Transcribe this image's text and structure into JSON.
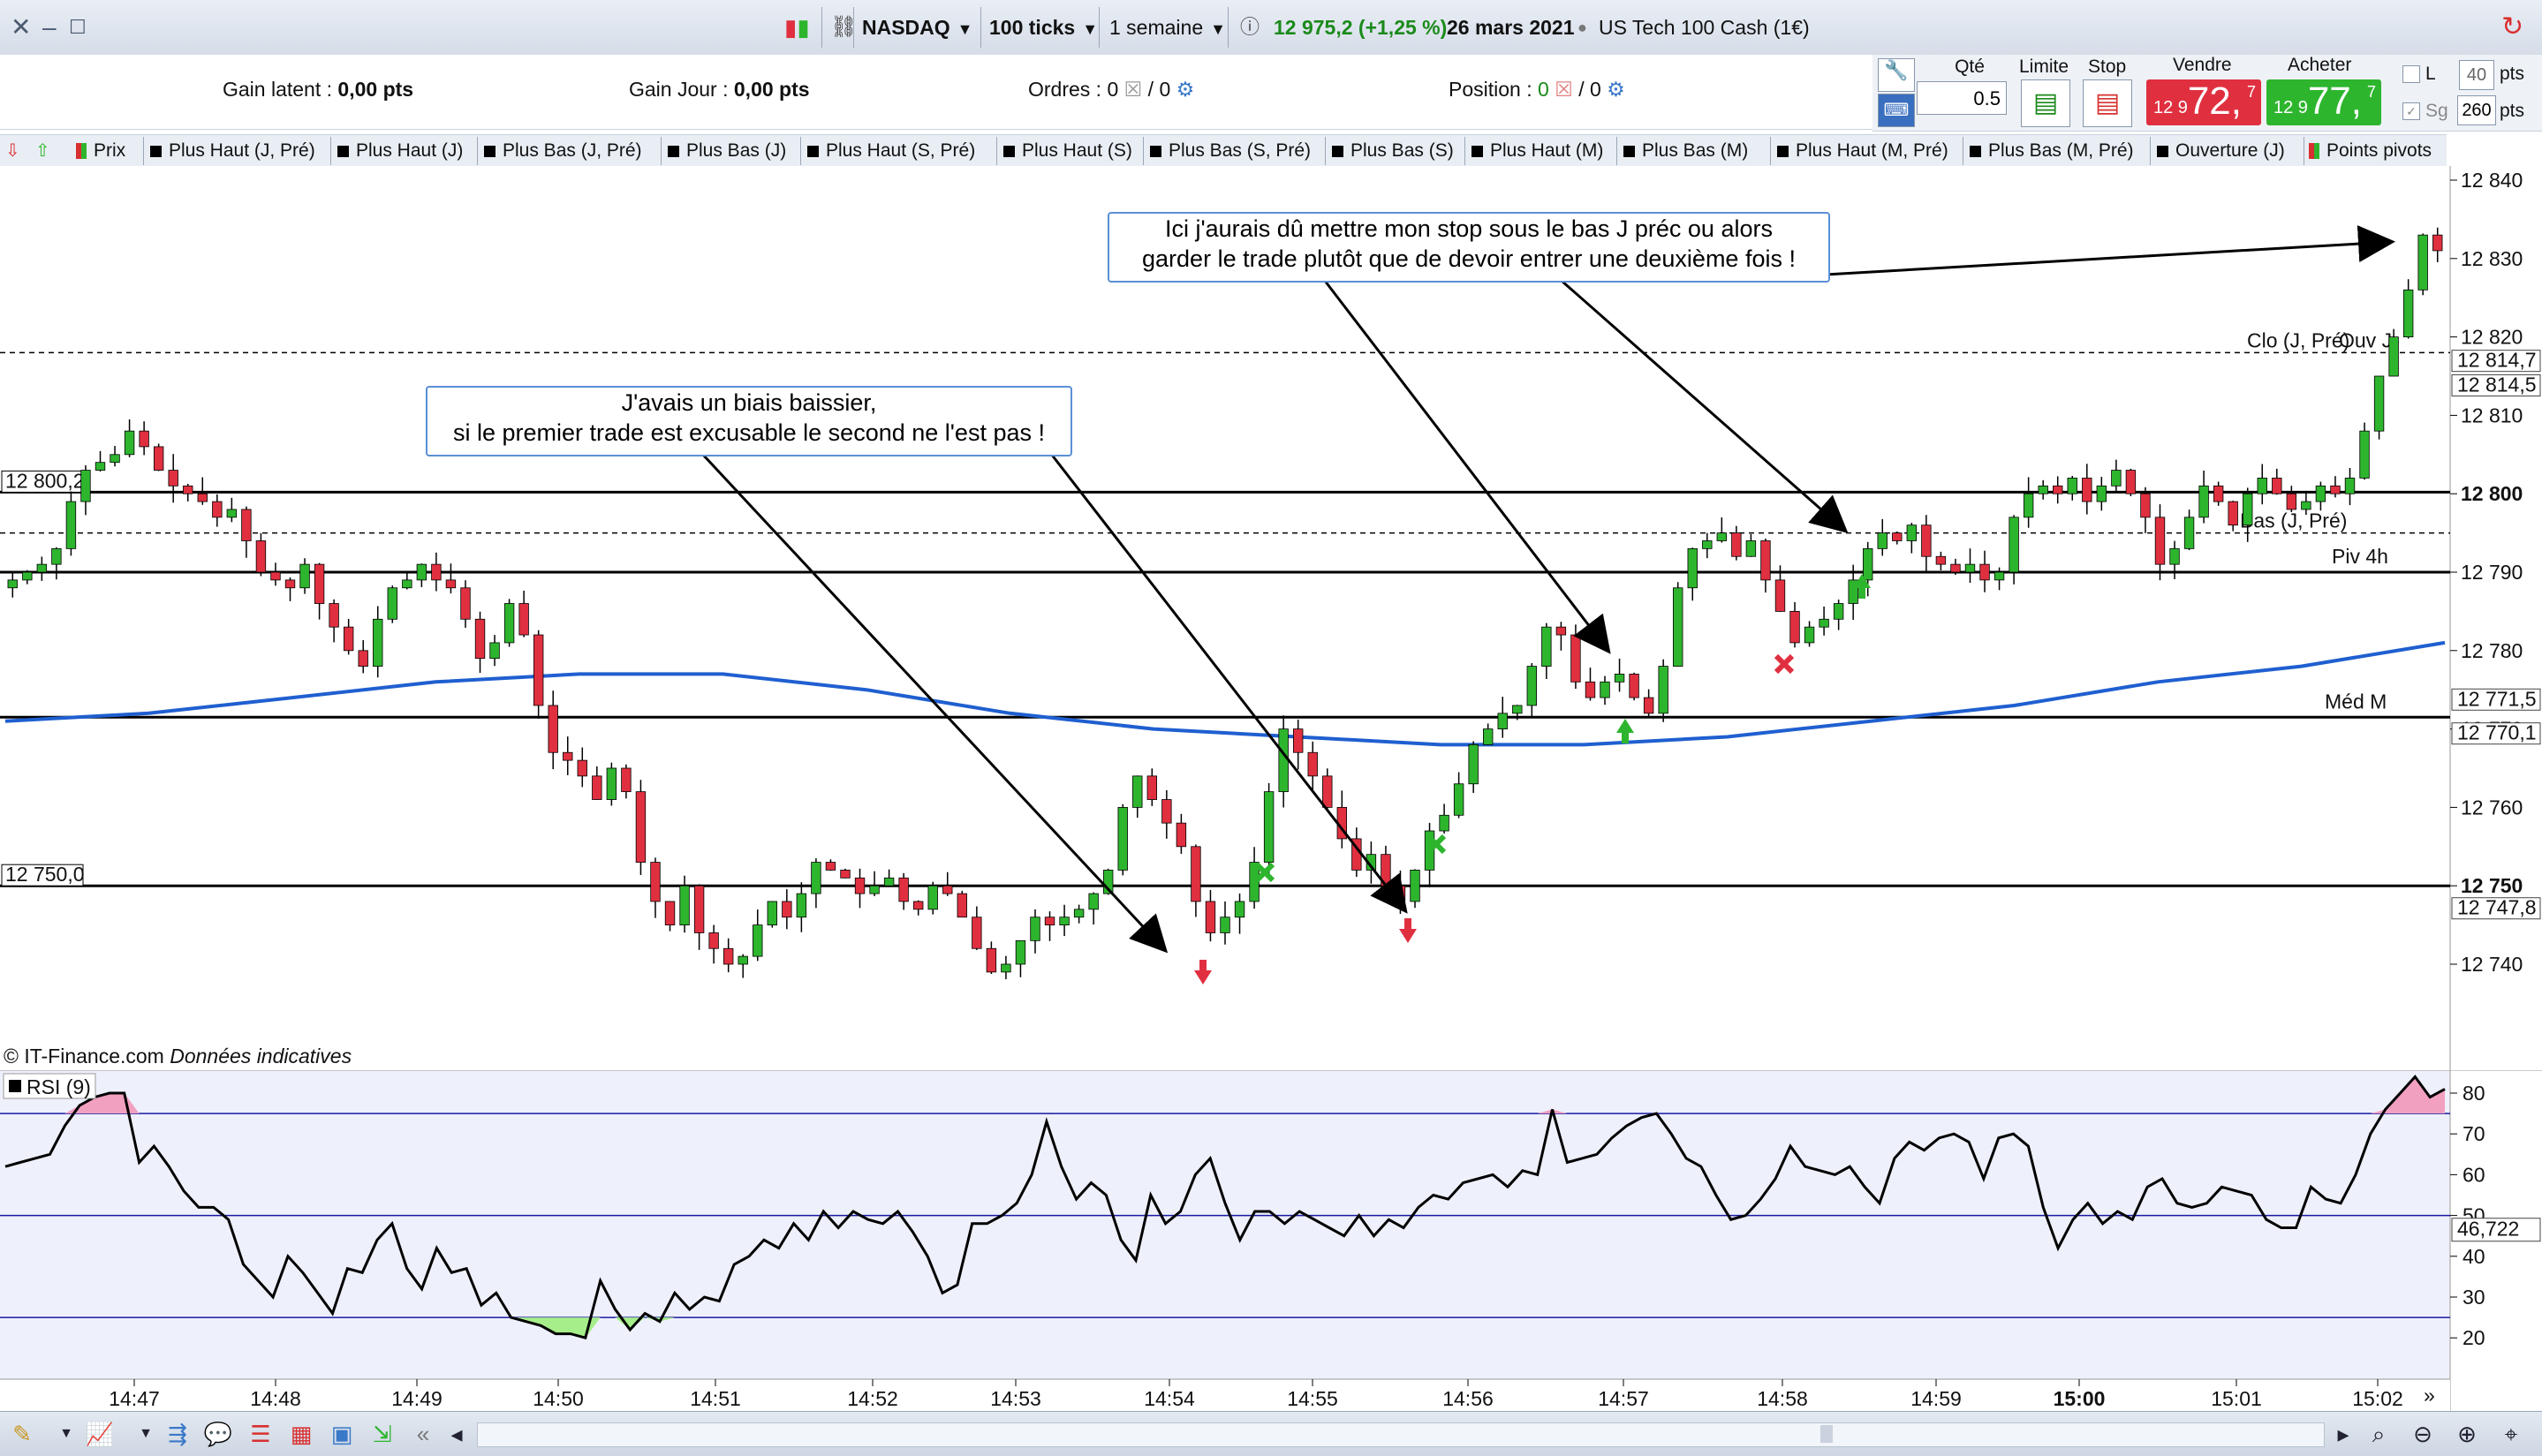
{
  "titlebar": {
    "instrument": "NASDAQ",
    "ticks": "100 ticks",
    "period": "1 semaine",
    "quote": "12 975,2 (+1,25 %)",
    "date": "26 mars 2021",
    "description": "US Tech 100 Cash (1€)"
  },
  "info": {
    "gain_latent_label": "Gain latent :",
    "gain_latent_value": "0,00 pts",
    "gain_jour_label": "Gain Jour :",
    "gain_jour_value": "0,00 pts",
    "ordres_label": "Ordres :",
    "ordres_a": "0",
    "ordres_b": "/ 0",
    "position_label": "Position :",
    "position_a": "0",
    "position_b": "/ 0"
  },
  "orderpanel": {
    "qte_label": "Qté",
    "qte_value": "0.5",
    "limite_label": "Limite",
    "stop_label": "Stop",
    "vendre_label": "Vendre",
    "vendre_small": "12 9",
    "vendre_big": "72,",
    "vendre_sup": "7",
    "acheter_label": "Acheter",
    "acheter_small": "12 9",
    "acheter_big": "77,",
    "acheter_sup": "7",
    "l_label": "L",
    "l_value": "40",
    "l_unit": "pts",
    "sg_label": "Sg",
    "sg_value": "260",
    "sg_unit": "pts",
    "colors": {
      "sell": "#e03040",
      "buy": "#2eb52e"
    }
  },
  "tabs": [
    "Prix",
    "Plus Haut (J, Pré)",
    "Plus Haut (J)",
    "Plus Bas (J, Pré)",
    "Plus Bas (J)",
    "Plus Haut (S, Pré)",
    "Plus Haut (S)",
    "Plus Bas (S, Pré)",
    "Plus Bas (S)",
    "Plus Haut (M)",
    "Plus Bas (M)",
    "Plus Haut (M, Pré)",
    "Plus Bas (M, Pré)",
    "Ouverture (J)",
    "Points pivots"
  ],
  "chart_data": [
    {
      "type": "candlestick",
      "title": "NASDAQ 100 ticks",
      "x_labels": [
        "14:47",
        "14:48",
        "14:49",
        "14:50",
        "14:51",
        "14:52",
        "14:53",
        "14:54",
        "14:55",
        "14:56",
        "14:57",
        "14:58",
        "14:59",
        "15:00",
        "15:01",
        "15:02"
      ],
      "y_ticks": [
        "12 840",
        "12 830",
        "12 820",
        "12 810",
        "12 800",
        "12 790",
        "12 780",
        "12 770",
        "12 760",
        "12 750",
        "12 740"
      ],
      "ylim": [
        12729,
        12842
      ],
      "closes": [
        12789,
        12790,
        12791,
        12793,
        12799,
        12803,
        12804,
        12805,
        12808,
        12806,
        12803,
        12801,
        12800,
        12799,
        12797,
        12798,
        12794,
        12790,
        12789,
        12788,
        12791,
        12786,
        12783,
        12780,
        12778,
        12784,
        12788,
        12789,
        12791,
        12789,
        12788,
        12784,
        12779,
        12781,
        12786,
        12782,
        12773,
        12767,
        12766,
        12764,
        12761,
        12765,
        12762,
        12753,
        12748,
        12745,
        12750,
        12744,
        12742,
        12740,
        12741,
        12745,
        12748,
        12746,
        12749,
        12753,
        12752,
        12751,
        12749,
        12750,
        12751,
        12748,
        12747,
        12750,
        12749,
        12746,
        12742,
        12739,
        12740,
        12743,
        12746,
        12745,
        12746,
        12747,
        12749,
        12752,
        12760,
        12764,
        12761,
        12758,
        12755,
        12748,
        12744,
        12746,
        12748,
        12753,
        12762,
        12770,
        12767,
        12764,
        12760,
        12756,
        12752,
        12754,
        12750,
        12748,
        12752,
        12757,
        12759,
        12763,
        12768,
        12770,
        12772,
        12773,
        12778,
        12783,
        12782,
        12776,
        12774,
        12776,
        12777,
        12774,
        12772,
        12778,
        12788,
        12793,
        12794,
        12795,
        12792,
        12794,
        12789,
        12785,
        12781,
        12783,
        12784,
        12786,
        12789,
        12793,
        12795,
        12794,
        12796,
        12792,
        12791,
        12790,
        12791,
        12789,
        12790,
        12797,
        12800,
        12801,
        12800,
        12802,
        12799,
        12801,
        12803,
        12800,
        12797,
        12791,
        12793,
        12797,
        12801,
        12799,
        12796,
        12800,
        12802,
        12800,
        12798,
        12799,
        12801,
        12800,
        12802,
        12808,
        12815,
        12820,
        12826,
        12833,
        12831
      ],
      "series": [
        {
          "name": "Prix"
        }
      ],
      "levels": [
        {
          "label": "Clo (J, Pré)",
          "value": 12818,
          "style": "dashed"
        },
        {
          "label": "Ouv J",
          "value": 12818,
          "style": "dashed"
        },
        {
          "label": "12 800,2",
          "value": 12800.2,
          "style": "solid"
        },
        {
          "label": "Bas (J, Pré)",
          "value": 12795,
          "style": "dashed"
        },
        {
          "label": "Piv 4h",
          "value": 12790,
          "style": "solid"
        },
        {
          "label": "Méd M",
          "value": 12771.5,
          "style": "solid"
        },
        {
          "label": "12 750,0",
          "value": 12750,
          "style": "solid"
        }
      ],
      "price_tags": [
        "12 814,7",
        "12 814,5",
        "12 771,5",
        "12 770,1",
        "12 747,8"
      ],
      "moving_average": {
        "color": "#1f5fd0",
        "values": [
          12771,
          12772,
          12774,
          12776,
          12777,
          12777,
          12775,
          12772,
          12770,
          12769,
          12768,
          12768,
          12769,
          12771,
          12773,
          12776,
          12778,
          12781
        ]
      },
      "source_label": "© IT-Finance.com",
      "source_note": "Données indicatives",
      "annotations": [
        {
          "text_line1": "J'avais un biais baissier,",
          "text_line2": "si le premier trade est excusable le second ne l'est pas !"
        },
        {
          "text_line1": "Ici j'aurais dû mettre mon stop sous le bas J préc ou alors",
          "text_line2": "garder le trade plutôt que de devoir entrer une deuxième fois !"
        }
      ],
      "markers": [
        {
          "kind": "sell-arrow",
          "color": "#e03040"
        },
        {
          "kind": "sell-arrow",
          "color": "#e03040"
        },
        {
          "kind": "buy-arrow",
          "color": "#2eb52e"
        },
        {
          "kind": "buy-arrow",
          "color": "#2eb52e"
        },
        {
          "kind": "exit-cross",
          "color": "#2eb52e"
        },
        {
          "kind": "exit-cross",
          "color": "#2eb52e"
        },
        {
          "kind": "exit-cross",
          "color": "#e03040"
        }
      ]
    },
    {
      "type": "line",
      "title": "RSI (9)",
      "y_ticks": [
        "80",
        "70",
        "60",
        "50",
        "40",
        "30",
        "20"
      ],
      "ylim": [
        12,
        87
      ],
      "upper_band": 75,
      "mid_band": 50,
      "lower_band": 25,
      "current_value_label": "46,722",
      "values": [
        62,
        63,
        64,
        65,
        72,
        77,
        79,
        80,
        80,
        63,
        67,
        62,
        56,
        52,
        52,
        49,
        38,
        34,
        30,
        40,
        36,
        31,
        26,
        37,
        36,
        44,
        48,
        37,
        32,
        42,
        36,
        37,
        28,
        31,
        25,
        24,
        23,
        21,
        21,
        20,
        34,
        27,
        22,
        26,
        24,
        31,
        27,
        30,
        29,
        38,
        40,
        44,
        42,
        48,
        44,
        51,
        47,
        51,
        49,
        48,
        51,
        46,
        40,
        31,
        33,
        48,
        48,
        50,
        53,
        60,
        73,
        62,
        54,
        58,
        55,
        44,
        39,
        55,
        48,
        51,
        60,
        64,
        53,
        44,
        51,
        51,
        48,
        51,
        49,
        47,
        45,
        50,
        45,
        49,
        47,
        52,
        55,
        54,
        58,
        59,
        60,
        57,
        61,
        60,
        76,
        63,
        64,
        65,
        69,
        72,
        74,
        75,
        70,
        64,
        62,
        55,
        49,
        50,
        54,
        59,
        67,
        62,
        61,
        60,
        62,
        57,
        53,
        64,
        68,
        66,
        69,
        70,
        68,
        59,
        69,
        70,
        67,
        52,
        42,
        49,
        53,
        48,
        51,
        49,
        57,
        59,
        53,
        52,
        53,
        57,
        56,
        55,
        49,
        47,
        47,
        57,
        54,
        53,
        60,
        70,
        76,
        80,
        84,
        79,
        81
      ]
    }
  ]
}
